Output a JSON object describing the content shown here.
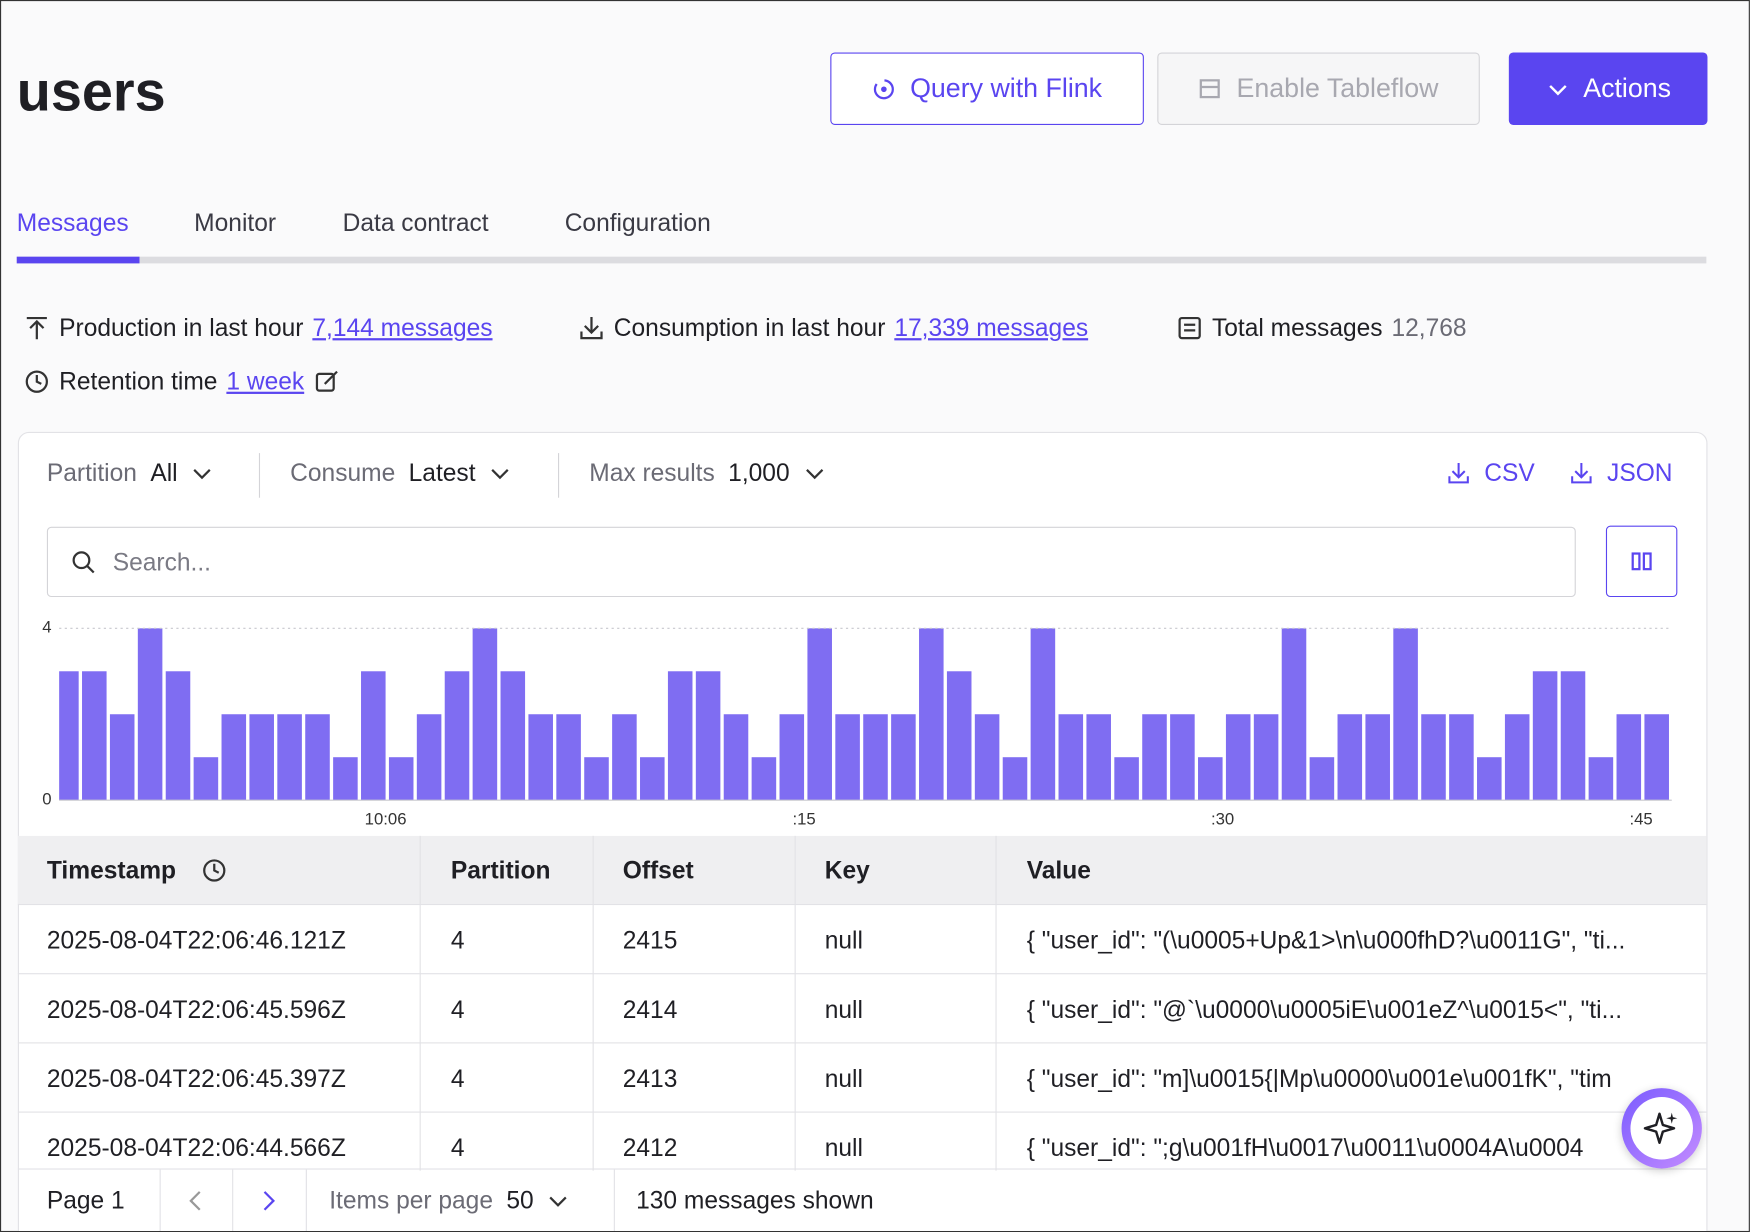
{
  "header": {
    "title": "users",
    "buttons": [
      "Query with Flink",
      "Enable Tableflow",
      "Actions"
    ]
  },
  "tabs": [
    "Messages",
    "Monitor",
    "Data contract",
    "Configuration"
  ],
  "stats": {
    "production": {
      "label": "Production in last hour",
      "link": "7,144 messages"
    },
    "consumption": {
      "label": "Consumption in last hour",
      "link": "17,339 messages"
    },
    "total": {
      "label": "Total messages",
      "value": "12,768"
    },
    "retention": {
      "label": "Retention time",
      "link": "1 week"
    }
  },
  "filters": [
    {
      "label": "Partition",
      "value": "All"
    },
    {
      "label": "Consume",
      "value": "Latest"
    },
    {
      "label": "Max results",
      "value": "1,000"
    }
  ],
  "downloads": [
    "CSV",
    "JSON"
  ],
  "search_placeholder": "Search...",
  "chart_data": {
    "type": "bar",
    "color": "#7f6df2",
    "categories": [
      null,
      null,
      null,
      null,
      null,
      null,
      null,
      null,
      null,
      null,
      null,
      null,
      "10:06",
      null,
      null,
      null,
      null,
      null,
      null,
      null,
      null,
      null,
      null,
      null,
      null,
      null,
      null,
      ":15",
      null,
      null,
      null,
      null,
      null,
      null,
      null,
      null,
      null,
      null,
      null,
      null,
      null,
      null,
      ":30",
      null,
      null,
      null,
      null,
      null,
      null,
      null,
      null,
      null,
      null,
      null,
      null,
      null,
      null,
      ":45",
      null
    ],
    "values": [
      3,
      3,
      2,
      4,
      3,
      1,
      2,
      2,
      2,
      2,
      1,
      3,
      1,
      2,
      3,
      4,
      3,
      2,
      2,
      1,
      2,
      1,
      3,
      3,
      2,
      1,
      2,
      4,
      2,
      2,
      2,
      4,
      3,
      2,
      1,
      4,
      2,
      2,
      1,
      2,
      2,
      1,
      2,
      2,
      4,
      1,
      2,
      2,
      4,
      2,
      2,
      1,
      2,
      3,
      3,
      1,
      2,
      2,
      1
    ],
    "ylim": [
      0,
      4
    ],
    "yticks": [
      0,
      4
    ],
    "grid": true
  },
  "table": {
    "columns": [
      "Timestamp",
      "Partition",
      "Offset",
      "Key",
      "Value"
    ],
    "rows": [
      [
        "2025-08-04T22:06:46.121Z",
        "4",
        "2415",
        "null",
        "{ \"user_id\": \"(\\u0005+Up&1>\\n\\u000fhD?\\u0011G\", \"ti..."
      ],
      [
        "2025-08-04T22:06:45.596Z",
        "4",
        "2414",
        "null",
        "{ \"user_id\": \"@`\\u0000\\u0005iE\\u001eZ^\\u0015<\", \"ti..."
      ],
      [
        "2025-08-04T22:06:45.397Z",
        "4",
        "2413",
        "null",
        "{ \"user_id\": \"m]\\u0015{|Mp\\u0000\\u001e\\u001fK\", \"tim"
      ],
      [
        "2025-08-04T22:06:44.566Z",
        "4",
        "2412",
        "null",
        "{ \"user_id\": \";g\\u001fH\\u0017\\u0011\\u0004A\\u0004"
      ]
    ]
  },
  "pagination": {
    "page": "Page 1",
    "items_label": "Items per page",
    "items_value": "50",
    "shown": "130 messages shown"
  }
}
